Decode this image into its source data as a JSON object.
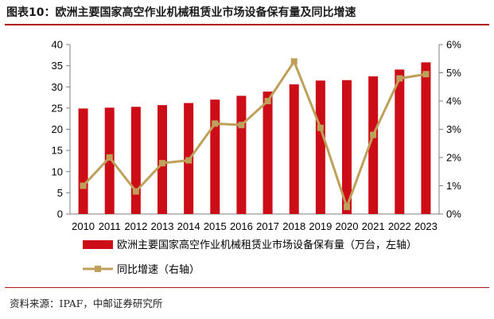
{
  "header": {
    "title": "图表10：欧洲主要国家高空作业机械租赁业市场设备保有量及同比增速"
  },
  "footer": {
    "source": "资料来源：IPAF，中邮证券研究所"
  },
  "chart_data": {
    "type": "bar",
    "categories": [
      "2010",
      "2011",
      "2012",
      "2013",
      "2014",
      "2015",
      "2016",
      "2017",
      "2018",
      "2019",
      "2020",
      "2021",
      "2022",
      "2023"
    ],
    "series": [
      {
        "name": "欧洲主要国家高空作业机械租赁业市场设备保有量（万台，左轴）",
        "type": "bar",
        "axis": "left",
        "color": "#cc0c17",
        "values": [
          24.9,
          25.1,
          25.3,
          25.7,
          26.2,
          27.0,
          27.9,
          28.9,
          30.6,
          31.5,
          31.6,
          32.5,
          34.1,
          35.8
        ]
      },
      {
        "name": "同比增速（右轴）",
        "type": "line",
        "axis": "right",
        "color": "#bfa05a",
        "values": [
          1.0,
          2.0,
          0.8,
          1.8,
          1.9,
          3.2,
          3.15,
          4.0,
          5.4,
          3.05,
          0.25,
          2.8,
          4.8,
          4.95
        ]
      }
    ],
    "y_left": {
      "min": 0,
      "max": 40,
      "step": 5,
      "ticks": [
        "0",
        "5",
        "10",
        "15",
        "20",
        "25",
        "30",
        "35",
        "40"
      ]
    },
    "y_right": {
      "min": 0,
      "max": 6,
      "step": 1,
      "ticks": [
        "0%",
        "1%",
        "2%",
        "3%",
        "4%",
        "5%",
        "6%"
      ]
    },
    "grid": false,
    "legend": "bottom"
  }
}
